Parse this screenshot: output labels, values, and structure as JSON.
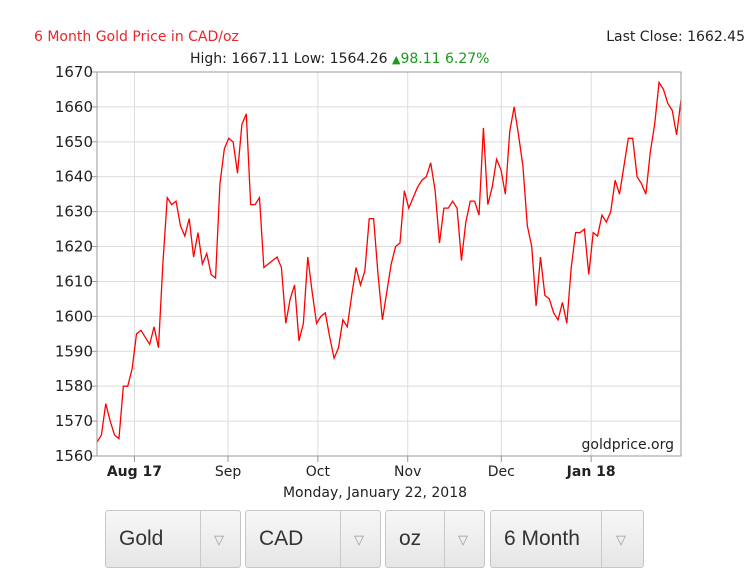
{
  "header": {
    "title": "6 Month Gold Price in CAD/oz",
    "last_close_label": "Last Close: 1662.45",
    "high_low": "High: 1667.11 Low: 1564.26",
    "change_icon": "up-triangle-icon",
    "change": "98.11 6.27%",
    "title_color": "#e8262a",
    "change_color": "#1a9b1a"
  },
  "chart_data": {
    "type": "line",
    "title": "6 Month Gold Price in CAD/oz",
    "xlabel": "Monday, January 22, 2018",
    "ylabel": "",
    "ylim": [
      1560,
      1670
    ],
    "yticks": [
      1560,
      1570,
      1580,
      1590,
      1600,
      1610,
      1620,
      1630,
      1640,
      1650,
      1660,
      1670
    ],
    "xlim": [
      0,
      156
    ],
    "xticks": [
      {
        "x": 10,
        "label": "Aug 17",
        "bold": true
      },
      {
        "x": 35,
        "label": "Sep",
        "bold": false
      },
      {
        "x": 59,
        "label": "Oct",
        "bold": false
      },
      {
        "x": 83,
        "label": "Nov",
        "bold": false
      },
      {
        "x": 108,
        "label": "Dec",
        "bold": false
      },
      {
        "x": 132,
        "label": "Jan 18",
        "bold": true
      }
    ],
    "grid": true,
    "watermark": "goldprice.org",
    "line_color": "#ff0000",
    "series": [
      {
        "values": [
          1564,
          1566,
          1575,
          1570,
          1566,
          1565,
          1580,
          1580,
          1585,
          1595,
          1596,
          1594,
          1592,
          1597,
          1591,
          1615,
          1634,
          1632,
          1633,
          1626,
          1623,
          1628,
          1617,
          1624,
          1615,
          1618,
          1612,
          1611,
          1638,
          1648,
          1651,
          1650,
          1641,
          1655,
          1658,
          1632,
          1632,
          1634,
          1614,
          1615,
          1616,
          1617,
          1614,
          1598,
          1605,
          1609,
          1593,
          1598,
          1617,
          1607,
          1598,
          1600,
          1601,
          1594,
          1588,
          1591,
          1599,
          1597,
          1606,
          1614,
          1609,
          1613,
          1628,
          1628,
          1612,
          1599,
          1607,
          1615,
          1620,
          1621,
          1636,
          1631,
          1634,
          1637,
          1639,
          1640,
          1644,
          1636,
          1621,
          1631,
          1631,
          1633,
          1631,
          1616,
          1627,
          1633,
          1633,
          1629,
          1654,
          1632,
          1637,
          1645,
          1642,
          1635,
          1653,
          1660,
          1652,
          1643,
          1626,
          1620,
          1603,
          1617,
          1606,
          1605,
          1601,
          1599,
          1604,
          1598,
          1614,
          1624,
          1624,
          1625,
          1612,
          1624,
          1623,
          1629,
          1627,
          1630,
          1639,
          1635,
          1643,
          1651,
          1651,
          1640,
          1638,
          1635,
          1647,
          1655,
          1667,
          1665,
          1661,
          1659,
          1652,
          1662
        ]
      }
    ]
  },
  "controls": [
    {
      "label": "Gold",
      "arrow": "chevron-down-icon"
    },
    {
      "label": "CAD",
      "arrow": "chevron-down-icon"
    },
    {
      "label": "oz",
      "arrow": "chevron-down-icon"
    },
    {
      "label": "6 Month",
      "arrow": "chevron-down-icon"
    }
  ]
}
